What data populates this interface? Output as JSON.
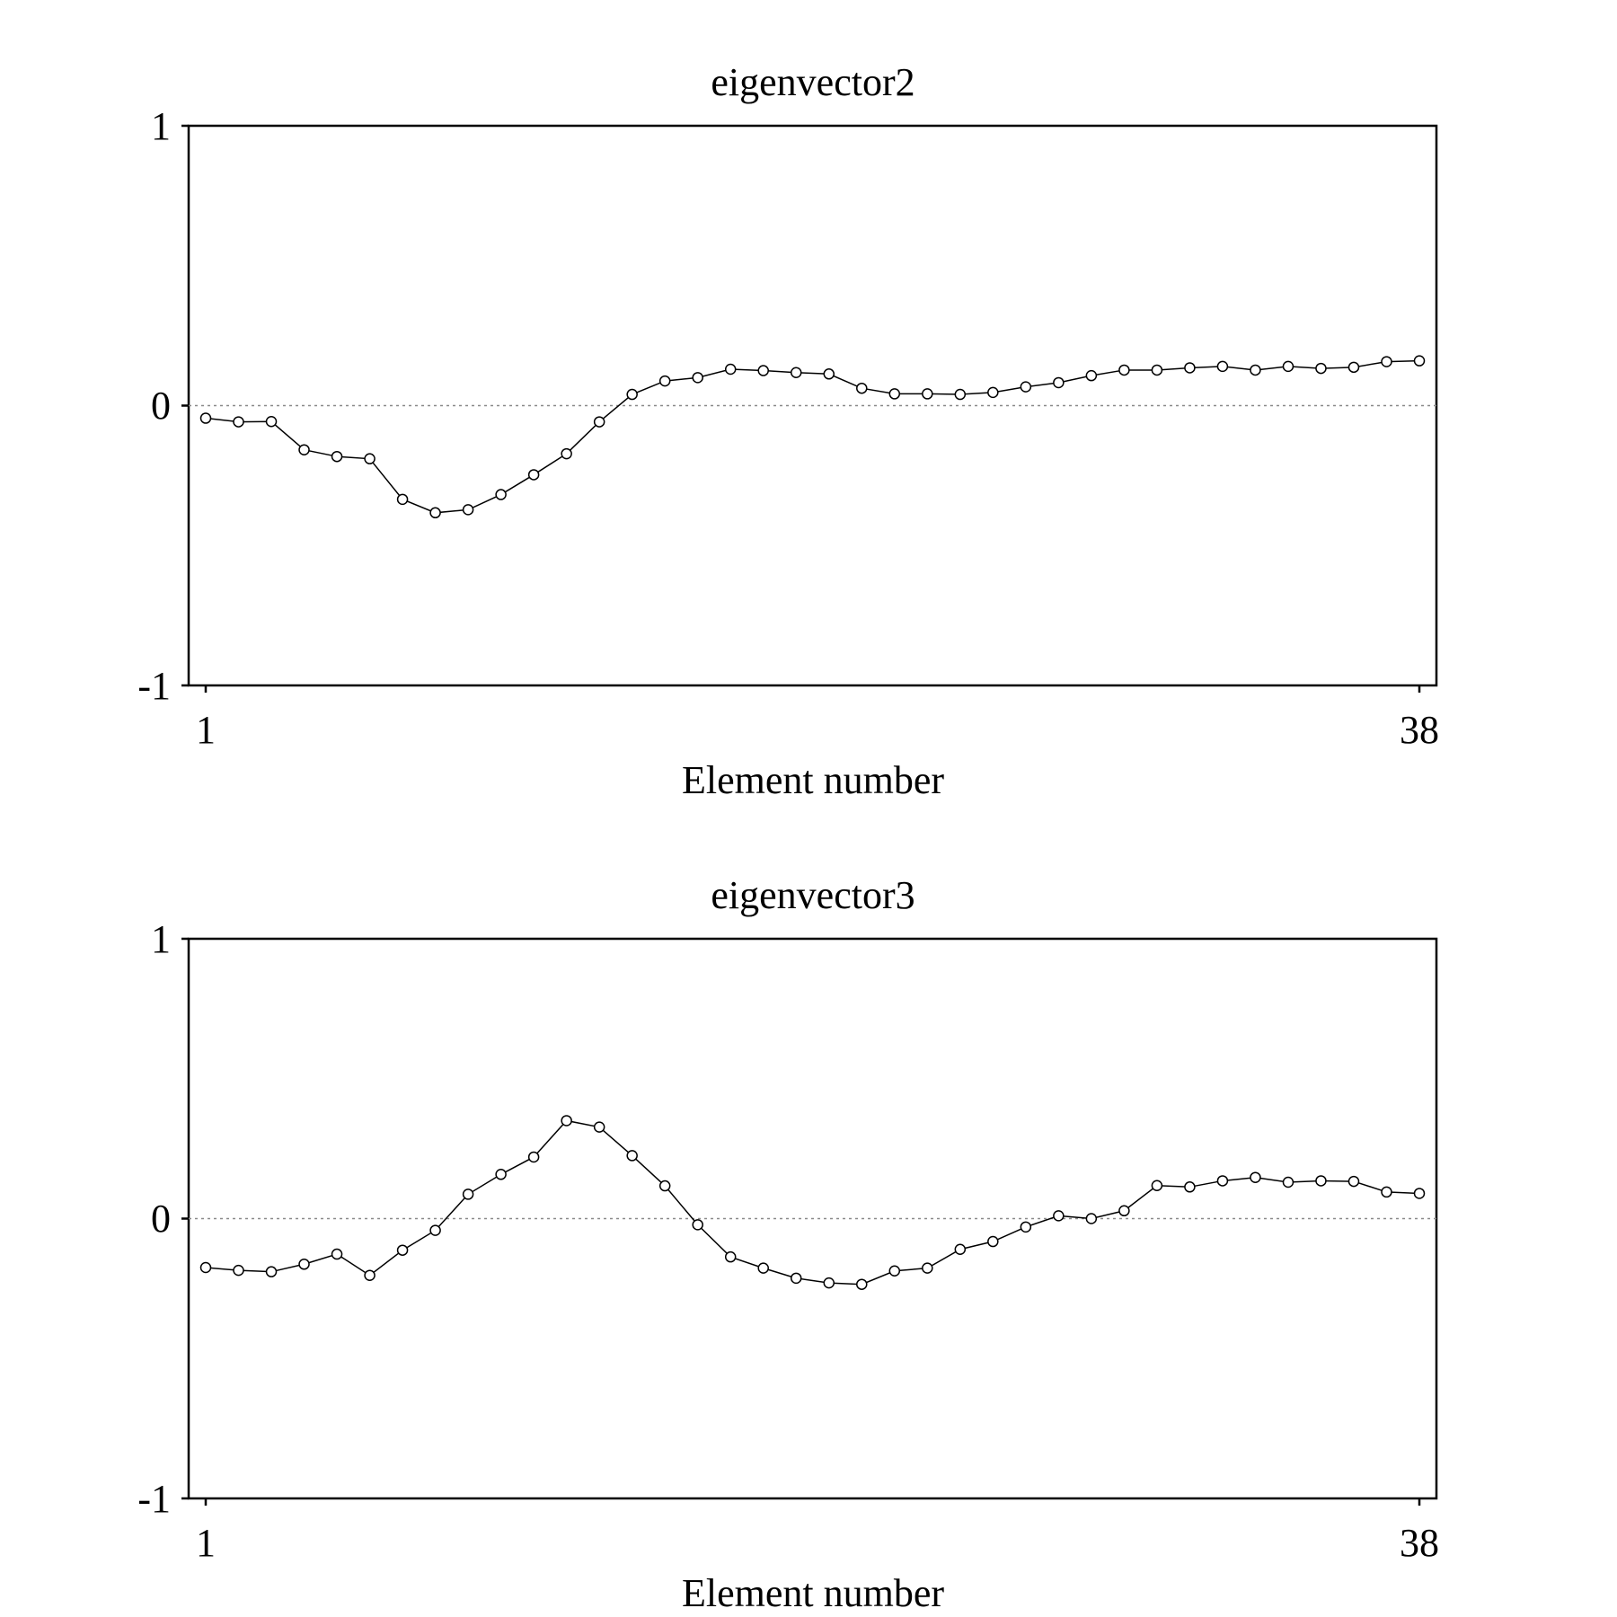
{
  "chart_data": [
    {
      "type": "line",
      "title": "eigenvector2",
      "xlabel": "Element number",
      "ylabel": "",
      "xlim": [
        1,
        38
      ],
      "ylim": [
        -1,
        1
      ],
      "x_ticks": [
        1,
        38
      ],
      "y_ticks": [
        -1,
        0,
        1
      ],
      "zero_reference_line": true,
      "grid": false,
      "markers": "open-circle",
      "series": [
        {
          "values": [
            -0.045,
            -0.058,
            -0.057,
            -0.158,
            -0.182,
            -0.19,
            -0.335,
            -0.383,
            -0.372,
            -0.318,
            -0.247,
            -0.172,
            -0.058,
            0.04,
            0.088,
            0.1,
            0.13,
            0.125,
            0.118,
            0.113,
            0.062,
            0.042,
            0.042,
            0.04,
            0.047,
            0.067,
            0.082,
            0.107,
            0.127,
            0.127,
            0.135,
            0.14,
            0.127,
            0.14,
            0.133,
            0.137,
            0.157,
            0.16
          ]
        }
      ]
    },
    {
      "type": "line",
      "title": "eigenvector3",
      "xlabel": "Element number",
      "ylabel": "",
      "xlim": [
        1,
        38
      ],
      "ylim": [
        -1,
        1
      ],
      "x_ticks": [
        1,
        38
      ],
      "y_ticks": [
        -1,
        0,
        1
      ],
      "zero_reference_line": true,
      "grid": false,
      "markers": "open-circle",
      "series": [
        {
          "values": [
            -0.175,
            -0.185,
            -0.19,
            -0.163,
            -0.127,
            -0.203,
            -0.113,
            -0.042,
            0.087,
            0.158,
            0.22,
            0.35,
            0.327,
            0.225,
            0.117,
            -0.022,
            -0.137,
            -0.177,
            -0.213,
            -0.23,
            -0.235,
            -0.187,
            -0.177,
            -0.11,
            -0.082,
            -0.03,
            0.01,
            0.0,
            0.028,
            0.118,
            0.113,
            0.135,
            0.147,
            0.13,
            0.135,
            0.133,
            0.095,
            0.09
          ]
        }
      ]
    }
  ]
}
